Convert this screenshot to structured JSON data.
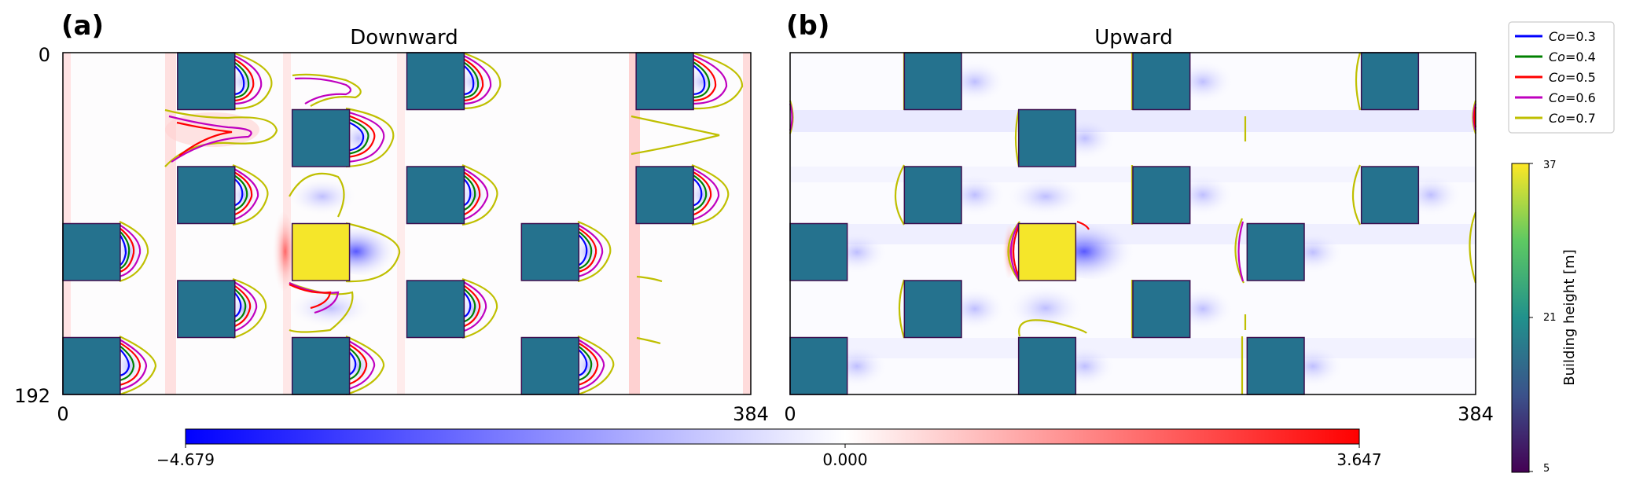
{
  "panels": [
    {
      "id": "a",
      "letter": "(a)",
      "title": "Downward",
      "x_tick_start": "0",
      "x_tick_end": "384",
      "y_tick_top": "0",
      "y_tick_bottom": "192",
      "domain": {
        "x": [
          0,
          384
        ],
        "y": [
          0,
          192
        ]
      }
    },
    {
      "id": "b",
      "letter": "(b)",
      "title": "Upward",
      "x_tick_start": "0",
      "x_tick_end": "384",
      "domain": {
        "x": [
          0,
          384
        ],
        "y": [
          0,
          192
        ]
      }
    }
  ],
  "buildings": [
    {
      "x": 64,
      "y": 0,
      "w": 32,
      "h": 32
    },
    {
      "x": 192,
      "y": 0,
      "w": 32,
      "h": 32
    },
    {
      "x": 320,
      "y": 0,
      "w": 32,
      "h": 32
    },
    {
      "x": 128,
      "y": 32,
      "w": 32,
      "h": 32
    },
    {
      "x": 64,
      "y": 64,
      "w": 32,
      "h": 32
    },
    {
      "x": 192,
      "y": 64,
      "w": 32,
      "h": 32
    },
    {
      "x": 320,
      "y": 64,
      "w": 32,
      "h": 32
    },
    {
      "x": 0,
      "y": 96,
      "w": 32,
      "h": 32
    },
    {
      "x": 128,
      "y": 96,
      "w": 32,
      "h": 32,
      "tall": true
    },
    {
      "x": 256,
      "y": 96,
      "w": 32,
      "h": 32
    },
    {
      "x": 64,
      "y": 128,
      "w": 32,
      "h": 32
    },
    {
      "x": 192,
      "y": 128,
      "w": 32,
      "h": 32
    },
    {
      "x": 0,
      "y": 160,
      "w": 32,
      "h": 32
    },
    {
      "x": 128,
      "y": 160,
      "w": 32,
      "h": 32
    },
    {
      "x": 256,
      "y": 160,
      "w": 32,
      "h": 32
    }
  ],
  "legend": [
    {
      "prefix": "Co",
      "value": "=0.3",
      "color": "#0000ff"
    },
    {
      "prefix": "Co",
      "value": "=0.4",
      "color": "#008000"
    },
    {
      "prefix": "Co",
      "value": "=0.5",
      "color": "#ff0000"
    },
    {
      "prefix": "Co",
      "value": "=0.6",
      "color": "#bf00bf"
    },
    {
      "prefix": "Co",
      "value": "=0.7",
      "color": "#bfbf00"
    }
  ],
  "colorbar_horizontal": {
    "min_label": "−4.679",
    "mid_label": "0.000",
    "max_label": "3.647",
    "min": -4.679,
    "max": 3.647,
    "colors": [
      "#0000ff",
      "#ffffff",
      "#ff0000"
    ]
  },
  "colorbar_vertical": {
    "label": "Building height [m]",
    "tick_top": "37",
    "tick_mid": "21",
    "tick_bottom": "5",
    "min": 5,
    "max": 37,
    "colors": [
      "#440154",
      "#3b528b",
      "#21918c",
      "#5ec962",
      "#fde725"
    ]
  },
  "colors": {
    "building": "#25728e",
    "tall_building": "#f5e62a",
    "building_edge": "#3b0f4f"
  }
}
